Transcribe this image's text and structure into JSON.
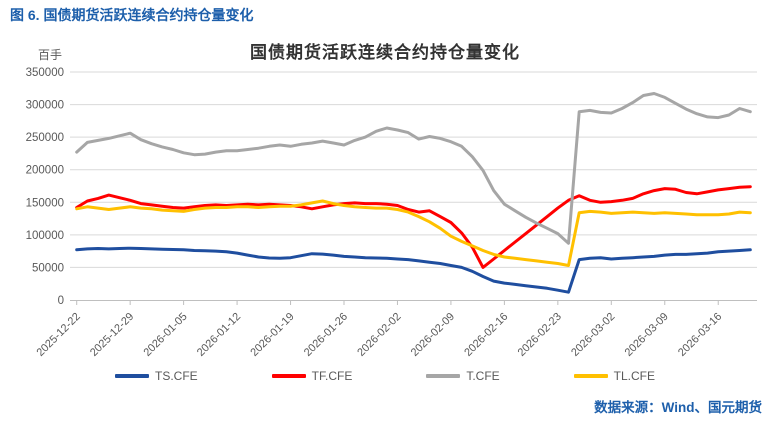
{
  "figure_caption": "图 6. 国债期货活跃连续合约持仓量变化",
  "footer": {
    "source_text": "数据来源：Wind、国元期货"
  },
  "colors": {
    "caption_blue": "#1d5fab",
    "title_text": "#333333",
    "axis_text": "#595959",
    "gridline": "#d9d9d9",
    "axis_line": "#bfbfbf",
    "ts_blue": "#1f4e9f",
    "tf_red": "#ff0000",
    "t_gray": "#a6a6a6",
    "tl_yellow": "#ffc000"
  },
  "chart_data": {
    "type": "line",
    "title": "国债期货活跃连续合约持仓量变化",
    "y_unit_label": "百手",
    "xlabel": "",
    "ylabel": "",
    "ylim": [
      0,
      350000
    ],
    "y_ticks": [
      0,
      50000,
      100000,
      150000,
      200000,
      250000,
      300000,
      350000
    ],
    "grid": true,
    "legend_position": "bottom",
    "x_tick_every": 5,
    "x_tick_labels": [
      "2025-12-22",
      "2025-12-29",
      "2026-01-05",
      "2026-01-12",
      "2026-01-19",
      "2026-01-26",
      "2026-02-02",
      "2026-02-09",
      "2026-02-16",
      "2026-02-23",
      "2026-03-02",
      "2026-03-09",
      "2026-03-16"
    ],
    "categories": [
      "2025-12-22",
      "2025-12-23",
      "2025-12-24",
      "2025-12-25",
      "2025-12-26",
      "2025-12-29",
      "2025-12-30",
      "2025-12-31",
      "2026-01-01",
      "2026-01-02",
      "2026-01-05",
      "2026-01-06",
      "2026-01-07",
      "2026-01-08",
      "2026-01-09",
      "2026-01-12",
      "2026-01-13",
      "2026-01-14",
      "2026-01-15",
      "2026-01-16",
      "2026-01-19",
      "2026-01-20",
      "2026-01-21",
      "2026-01-22",
      "2026-01-23",
      "2026-01-26",
      "2026-01-27",
      "2026-01-28",
      "2026-01-29",
      "2026-01-30",
      "2026-02-02",
      "2026-02-03",
      "2026-02-04",
      "2026-02-05",
      "2026-02-06",
      "2026-02-09",
      "2026-02-10",
      "2026-02-11",
      "2026-02-12",
      "2026-02-13",
      "2026-02-16",
      "2026-02-17",
      "2026-02-18",
      "2026-02-19",
      "2026-02-20",
      "2026-02-23",
      "2026-02-24",
      "2026-02-25",
      "2026-02-26",
      "2026-02-27",
      "2026-03-02",
      "2026-03-03",
      "2026-03-04",
      "2026-03-05",
      "2026-03-06",
      "2026-03-09",
      "2026-03-10",
      "2026-03-11",
      "2026-03-12",
      "2026-03-13",
      "2026-03-16",
      "2026-03-17",
      "2026-03-18",
      "2026-03-19"
    ],
    "series": [
      {
        "name": "TS.CFE",
        "color": "#1f4e9f",
        "values": [
          77000,
          78500,
          79000,
          78500,
          79000,
          79500,
          79000,
          78500,
          78000,
          77500,
          77000,
          76000,
          75500,
          75000,
          74000,
          72000,
          69000,
          66000,
          64500,
          64000,
          65000,
          68000,
          71000,
          70500,
          69000,
          67000,
          66000,
          65000,
          64500,
          64000,
          63000,
          62000,
          60000,
          58000,
          56000,
          53000,
          50000,
          44000,
          36000,
          29000,
          26000,
          24000,
          22000,
          20000,
          18000,
          15000,
          12000,
          62000,
          64000,
          65000,
          63000,
          64000,
          65000,
          66000,
          67000,
          69000,
          70000,
          70000,
          71000,
          72000,
          74000,
          75000,
          76000,
          77000
        ]
      },
      {
        "name": "TF.CFE",
        "color": "#ff0000",
        "values": [
          142000,
          152000,
          156000,
          161000,
          157000,
          153000,
          148000,
          146000,
          144000,
          142000,
          141000,
          143000,
          145000,
          146000,
          145000,
          146000,
          147000,
          146000,
          147000,
          146000,
          145000,
          143000,
          140000,
          143000,
          146000,
          148000,
          149000,
          148000,
          148000,
          147000,
          145000,
          139000,
          135000,
          137000,
          128000,
          119000,
          103000,
          81000,
          50000,
          63000,
          76000,
          89000,
          102000,
          115000,
          128000,
          141000,
          153000,
          160000,
          153000,
          150000,
          151000,
          153000,
          156000,
          163000,
          168000,
          171000,
          170000,
          165000,
          163000,
          166000,
          169000,
          171000,
          173000,
          174000
        ]
      },
      {
        "name": "T.CFE",
        "color": "#a6a6a6",
        "values": [
          227000,
          242000,
          245000,
          248000,
          252000,
          256000,
          246000,
          240000,
          235000,
          231000,
          226000,
          223000,
          224000,
          227000,
          229000,
          229000,
          231000,
          233000,
          236000,
          238000,
          236000,
          239000,
          241000,
          244000,
          241000,
          238000,
          245000,
          250000,
          259000,
          264000,
          261000,
          257000,
          247000,
          251000,
          248000,
          243000,
          236000,
          220000,
          199000,
          168000,
          147000,
          137000,
          127000,
          118000,
          110000,
          102000,
          87000,
          289000,
          291000,
          288000,
          287000,
          294000,
          303000,
          314000,
          317000,
          311000,
          302000,
          293000,
          286000,
          281000,
          280000,
          284000,
          294000,
          289000
        ]
      },
      {
        "name": "TL.CFE",
        "color": "#ffc000",
        "values": [
          140000,
          143000,
          141000,
          139000,
          141000,
          143000,
          141000,
          140000,
          138000,
          137000,
          136000,
          139000,
          141000,
          142000,
          142000,
          143000,
          143000,
          142000,
          143000,
          144000,
          144000,
          146000,
          149000,
          152000,
          148000,
          145000,
          143000,
          142000,
          141000,
          141000,
          139000,
          135000,
          128000,
          120000,
          110000,
          98000,
          90000,
          83000,
          76000,
          70000,
          66000,
          64000,
          62000,
          60000,
          58000,
          56000,
          53000,
          134000,
          136000,
          135000,
          133000,
          134000,
          135000,
          134000,
          133000,
          134000,
          133000,
          132000,
          131000,
          131000,
          131000,
          132000,
          135000,
          134000
        ]
      }
    ]
  }
}
